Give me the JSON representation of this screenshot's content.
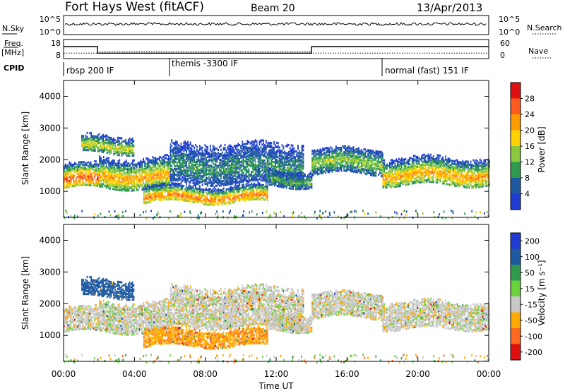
{
  "header": {
    "station": "Fort Hays West (fitACF)",
    "beam": "Beam 20",
    "date": "13/Apr/2013"
  },
  "noise_panel": {
    "left_label": "N.Sky",
    "right_label": "N.Search",
    "left_ticks": [
      "10^5",
      "10^0"
    ],
    "right_ticks": [
      "10^5",
      "10^0"
    ]
  },
  "freq_panel": {
    "left_label_1": "Freq.",
    "left_label_2": "[MHz]",
    "right_label": "Nave",
    "left_ticks": [
      "18",
      "8"
    ],
    "right_ticks": [
      "60",
      "0"
    ],
    "freq_steps": [
      {
        "from": "00:00",
        "to": "01:55",
        "value": 14.5
      },
      {
        "from": "01:55",
        "to": "14:00",
        "value": 10.5
      },
      {
        "from": "14:00",
        "to": "24:00",
        "value": 14.5
      }
    ],
    "nave_steps": [
      {
        "from": "00:00",
        "to": "01:55",
        "value": 15
      },
      {
        "from": "01:55",
        "to": "14:00",
        "value": 20
      },
      {
        "from": "14:00",
        "to": "24:00",
        "value": 15
      }
    ]
  },
  "cpid": {
    "label": "CPID",
    "segments": [
      "rbsp 200 IF",
      "themis -3300 IF",
      "normal (fast) 151 IF"
    ],
    "segment_starts": [
      "00:00",
      "06:00",
      "18:00"
    ]
  },
  "x_axis": {
    "label": "Time UT",
    "ticks": [
      "00:00",
      "04:00",
      "08:00",
      "12:00",
      "16:00",
      "20:00",
      "00:00"
    ]
  },
  "power_panel": {
    "ylabel": "Slant Range [km]",
    "yticks": [
      "4000",
      "3000",
      "2000",
      "1000"
    ],
    "colorbar_label": "Power [dB]",
    "colorbar_ticks": [
      "28",
      "24",
      "20",
      "16",
      "12",
      "8",
      "4"
    ],
    "colors": [
      "#e01010",
      "#ff5a1e",
      "#ff9a00",
      "#ffd200",
      "#8ac83c",
      "#2e9a4e",
      "#1e5aa0",
      "#1e3cd2"
    ]
  },
  "velocity_panel": {
    "ylabel": "Slant Range [km]",
    "yticks": [
      "4000",
      "3000",
      "2000",
      "1000"
    ],
    "colorbar_label": "Velocity [m s⁻¹]",
    "colorbar_ticks": [
      "200",
      "100",
      "50",
      "15",
      "-15",
      "-50",
      "-100",
      "-200"
    ],
    "colors": [
      "#1e3cd2",
      "#1e5aa0",
      "#2e9a4e",
      "#6ad23c",
      "#c8c8c8",
      "#ffaa00",
      "#ff6a1e",
      "#e01010"
    ]
  },
  "chart_data": {
    "type": "heatmap",
    "x_range_hours": [
      0,
      24
    ],
    "y_range_km": [
      180,
      4500
    ],
    "scatter_bands": [
      {
        "t0": 0.0,
        "t1": 2.0,
        "r_lo": 1150,
        "r_hi": 1950,
        "core": 1400,
        "power": 22,
        "vel": 0
      },
      {
        "t0": 2.0,
        "t1": 6.0,
        "r_lo": 1150,
        "r_hi": 2100,
        "core": 1500,
        "power": 18,
        "vel": 0
      },
      {
        "t0": 1.0,
        "t1": 4.0,
        "r_lo": 2250,
        "r_hi": 2800,
        "core": 2450,
        "power": 14,
        "vel": 120
      },
      {
        "t0": 4.5,
        "t1": 11.5,
        "r_lo": 700,
        "r_hi": 1300,
        "core": 850,
        "power": 20,
        "vel": -40
      },
      {
        "t0": 6.0,
        "t1": 13.5,
        "r_lo": 1300,
        "r_hi": 2600,
        "core": 1800,
        "power": 8,
        "vel": 0
      },
      {
        "t0": 11.5,
        "t1": 14.0,
        "r_lo": 1200,
        "r_hi": 1700,
        "core": 1400,
        "power": 10,
        "vel": 0
      },
      {
        "t0": 14.0,
        "t1": 18.0,
        "r_lo": 1600,
        "r_hi": 2400,
        "core": 1950,
        "power": 12,
        "vel": 0
      },
      {
        "t0": 18.0,
        "t1": 24.0,
        "r_lo": 1250,
        "r_hi": 2150,
        "core": 1550,
        "power": 18,
        "vel": 0
      }
    ]
  }
}
